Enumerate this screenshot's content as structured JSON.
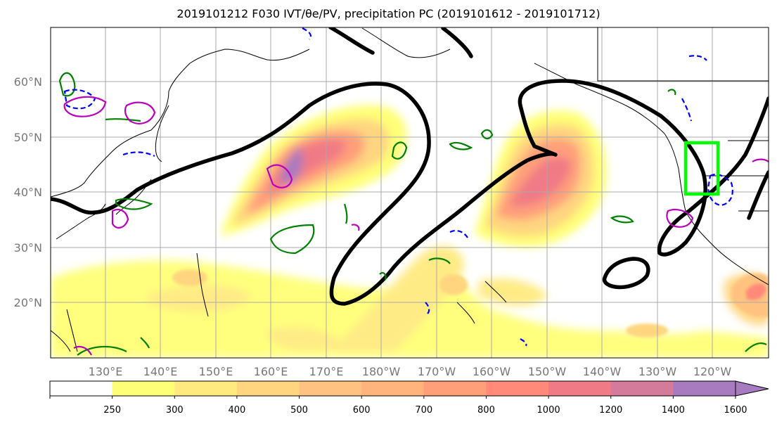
{
  "title": "2019101212 F030 IVT/θe/PV, precipitation PC (2019101612 - 2019101712)",
  "latitude_labels": [
    "60°N",
    "50°N",
    "40°N",
    "30°N",
    "20°N"
  ],
  "longitude_labels": [
    "130°E",
    "140°E",
    "150°E",
    "160°E",
    "170°E",
    "180°W",
    "170°W",
    "160°W",
    "150°W",
    "140°W",
    "130°W",
    "120°W"
  ],
  "colorbar": {
    "ticks": [
      "250",
      "300",
      "400",
      "500",
      "600",
      "700",
      "800",
      "1000",
      "1200",
      "1400",
      "1600"
    ],
    "colors": [
      "#ffffff",
      "#ffff77",
      "#ffea80",
      "#ffd580",
      "#ffc280",
      "#ffb37d",
      "#ff9f7a",
      "#ff8a7a",
      "#f07a85",
      "#d47a9a",
      "#a87abf"
    ]
  },
  "overlays": {
    "ivt_shading": "IVT",
    "theta_e_contour_color": "#000000",
    "pv_contour_colors": [
      "#008000",
      "#0000ff",
      "#bb00bb"
    ],
    "target_box_color": "#00ff00"
  }
}
